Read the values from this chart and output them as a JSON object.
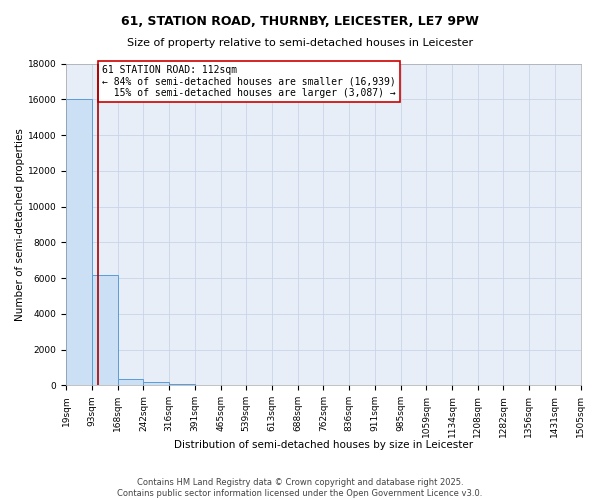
{
  "title": "61, STATION ROAD, THURNBY, LEICESTER, LE7 9PW",
  "subtitle": "Size of property relative to semi-detached houses in Leicester",
  "xlabel": "Distribution of semi-detached houses by size in Leicester",
  "ylabel": "Number of semi-detached properties",
  "bin_edges": [
    19,
    93,
    168,
    242,
    316,
    391,
    465,
    539,
    613,
    688,
    762,
    836,
    911,
    985,
    1059,
    1134,
    1208,
    1282,
    1356,
    1431,
    1505
  ],
  "bar_heights": [
    16000,
    6200,
    380,
    170,
    50,
    20,
    10,
    5,
    3,
    2,
    1,
    1,
    1,
    0,
    0,
    0,
    0,
    0,
    0,
    0
  ],
  "bar_color": "#cce0f5",
  "bar_edge_color": "#5b9bd5",
  "property_size": 112,
  "red_line_color": "#aa0000",
  "ylim": [
    0,
    18000
  ],
  "yticks": [
    0,
    2000,
    4000,
    6000,
    8000,
    10000,
    12000,
    14000,
    16000,
    18000
  ],
  "annotation_title": "61 STATION ROAD: 112sqm",
  "annotation_line1": "← 84% of semi-detached houses are smaller (16,939)",
  "annotation_line2": "15% of semi-detached houses are larger (3,087) →",
  "footer_line1": "Contains HM Land Registry data © Crown copyright and database right 2025.",
  "footer_line2": "Contains public sector information licensed under the Open Government Licence v3.0.",
  "grid_color": "#c8d4e8",
  "background_color": "#e8eef8",
  "annotation_box_color": "#ffffff",
  "annotation_box_edge": "#cc0000",
  "title_fontsize": 9,
  "subtitle_fontsize": 8,
  "annotation_fontsize": 7,
  "footer_fontsize": 6,
  "ylabel_fontsize": 7.5,
  "xlabel_fontsize": 7.5,
  "tick_fontsize": 6.5
}
